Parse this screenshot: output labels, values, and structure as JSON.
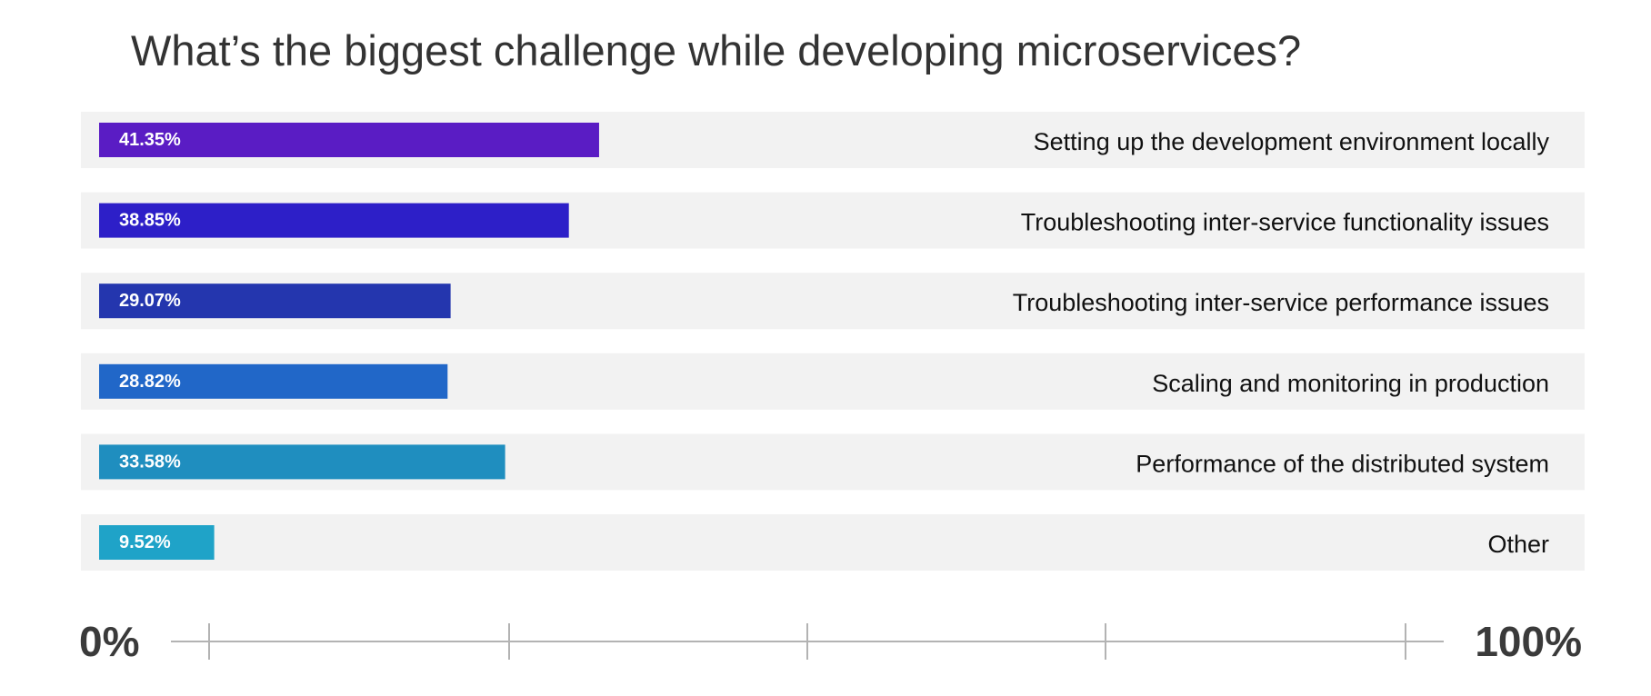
{
  "chart_data": {
    "type": "bar",
    "orientation": "horizontal",
    "title": "What’s the biggest challenge while developing microservices?",
    "categories": [
      "Setting up the development environment locally",
      "Troubleshooting inter-service functionality issues",
      "Troubleshooting inter-service performance issues",
      "Scaling and monitoring in production",
      "Performance of the distributed system",
      "Other"
    ],
    "values": [
      41.35,
      38.85,
      29.07,
      28.82,
      33.58,
      9.52
    ],
    "value_labels": [
      "41.35%",
      "38.85%",
      "29.07%",
      "28.82%",
      "33.58%",
      "9.52%"
    ],
    "bar_colors": [
      "#5a1cc4",
      "#2d1fc8",
      "#2436ae",
      "#2167c8",
      "#1f8ebf",
      "#1fa3c8"
    ],
    "xlim": [
      0,
      100
    ],
    "axis_min_label": "0%",
    "axis_max_label": "100%",
    "grid": false,
    "legend": "none"
  },
  "colors": {
    "row_background": "#f2f2f2",
    "axis_line": "#b3b3b3",
    "title": "#333333"
  }
}
